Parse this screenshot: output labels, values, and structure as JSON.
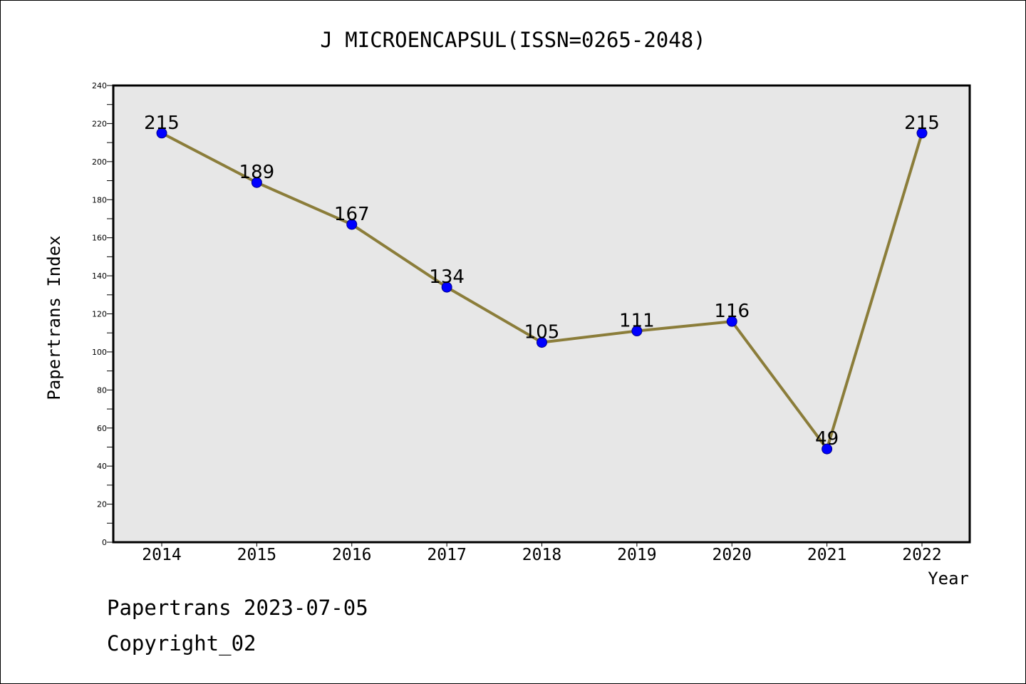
{
  "chart_data": {
    "type": "line",
    "title": "J MICROENCAPSUL(ISSN=0265-2048)",
    "xlabel": "Year",
    "ylabel": "Papertrans Index",
    "categories": [
      "2014",
      "2015",
      "2016",
      "2017",
      "2018",
      "2019",
      "2020",
      "2021",
      "2022"
    ],
    "series": [
      {
        "values": [
          215,
          189,
          167,
          134,
          105,
          111,
          116,
          49,
          215
        ]
      }
    ],
    "data_labels": [
      "215",
      "189",
      "167",
      "134",
      "105",
      "111",
      "116",
      "49",
      "215"
    ],
    "ylim": [
      0,
      240
    ],
    "y_ticks": [
      0,
      20,
      40,
      60,
      80,
      100,
      120,
      140,
      160,
      180,
      200,
      220,
      240
    ],
    "grid": false,
    "line_color": "#8B7D3A",
    "marker_color": "#0000FF",
    "plot_background": "#E7E7E7"
  },
  "footer": {
    "line1": "Papertrans 2023-07-05",
    "line2": "Copyright_02"
  }
}
